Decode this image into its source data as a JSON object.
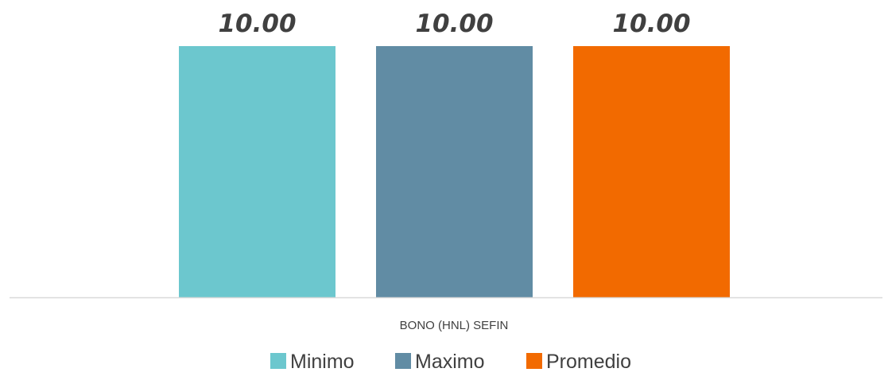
{
  "chart_data": {
    "type": "bar",
    "categories": [
      "BONO (HNL) SEFIN"
    ],
    "series": [
      {
        "name": "Minimo",
        "values": [
          10.0
        ],
        "color": "#6CC7CE",
        "label": "10.00"
      },
      {
        "name": "Maximo",
        "values": [
          10.0
        ],
        "color": "#618CA4",
        "label": "10.00"
      },
      {
        "name": "Promedio",
        "values": [
          10.0
        ],
        "color": "#F26A00",
        "label": "10.00"
      }
    ],
    "title": "",
    "xlabel": "",
    "ylabel": "",
    "ylim": [
      0,
      10
    ],
    "grid": false,
    "legend_position": "bottom",
    "axis_color": "#D9D9D9"
  }
}
